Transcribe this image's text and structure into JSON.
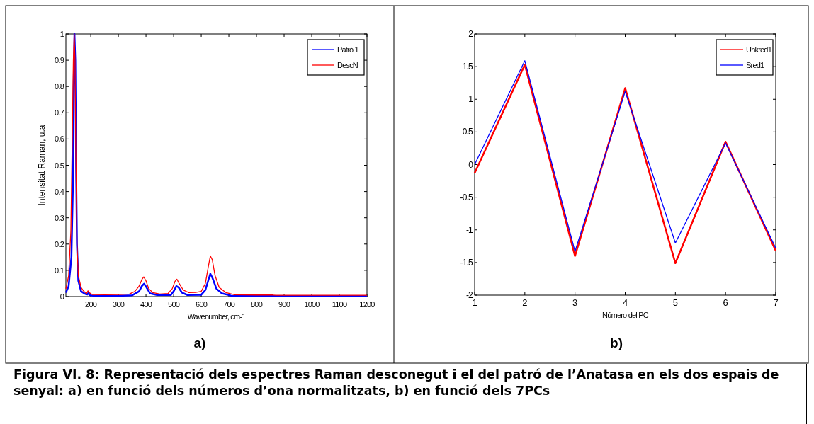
{
  "chart_data": [
    {
      "type": "line",
      "xlabel": "Wavenumber, cm-1",
      "ylabel": "Intensitat Raman, u.a",
      "annotations": [
        "a)"
      ],
      "xlim": [
        110,
        1200
      ],
      "ylim": [
        0,
        1
      ],
      "xticks": [
        200,
        300,
        400,
        500,
        600,
        700,
        800,
        900,
        1000,
        1100,
        1200
      ],
      "yticks": [
        0,
        0.1,
        0.2,
        0.3,
        0.4,
        0.5,
        0.6,
        0.7,
        0.8,
        0.9,
        1
      ],
      "legend": "top right",
      "series": [
        {
          "name": "Patró 1",
          "color": "#0000ff",
          "x": [
            110,
            120,
            130,
            135,
            138,
            141,
            144,
            147,
            150,
            155,
            165,
            180,
            188,
            192,
            197,
            210,
            300,
            350,
            375,
            385,
            393,
            402,
            415,
            440,
            490,
            500,
            510,
            518,
            530,
            550,
            600,
            615,
            625,
            633,
            641,
            655,
            675,
            700,
            710,
            870,
            1200
          ],
          "values": [
            0.015,
            0.04,
            0.15,
            0.4,
            0.8,
            1.0,
            0.9,
            0.5,
            0.2,
            0.06,
            0.02,
            0.01,
            0.008,
            0.015,
            0.005,
            0.003,
            0.003,
            0.005,
            0.02,
            0.04,
            0.049,
            0.035,
            0.012,
            0.006,
            0.006,
            0.02,
            0.04,
            0.035,
            0.015,
            0.006,
            0.007,
            0.025,
            0.06,
            0.087,
            0.07,
            0.03,
            0.012,
            0.006,
            0.002,
            0.002,
            0.002
          ]
        },
        {
          "name": "DescN",
          "color": "#ff0000",
          "x": [
            110,
            120,
            128,
            133,
            137,
            140,
            143,
            146,
            150,
            155,
            165,
            175,
            185,
            190,
            195,
            205,
            250,
            300,
            340,
            360,
            375,
            385,
            392,
            400,
            410,
            425,
            450,
            480,
            495,
            505,
            512,
            520,
            535,
            555,
            580,
            600,
            615,
            625,
            633,
            640,
            650,
            665,
            690,
            720,
            800,
            860,
            870,
            1200
          ],
          "values": [
            0.03,
            0.08,
            0.25,
            0.6,
            0.9,
            1.0,
            0.9,
            0.55,
            0.2,
            0.08,
            0.035,
            0.02,
            0.012,
            0.022,
            0.015,
            0.008,
            0.007,
            0.008,
            0.01,
            0.02,
            0.04,
            0.065,
            0.075,
            0.06,
            0.03,
            0.015,
            0.01,
            0.012,
            0.03,
            0.058,
            0.066,
            0.05,
            0.025,
            0.015,
            0.016,
            0.02,
            0.05,
            0.11,
            0.155,
            0.14,
            0.08,
            0.035,
            0.015,
            0.007,
            0.006,
            0.006,
            0.005,
            0.005
          ]
        }
      ]
    },
    {
      "type": "line",
      "xlabel": "Número del PC",
      "annotations": [
        "b)",
        "Figura VI. 8: Representació dels espectres Raman desconegut i el del patró de l’Anatasa en els dos espais de senyal: a) en funció dels números d’ona normalitzats, b) en funció dels 7PCs"
      ],
      "x": [
        1,
        2,
        3,
        4,
        5,
        6,
        7
      ],
      "xlim": [
        1,
        7
      ],
      "ylim": [
        -2,
        2
      ],
      "xticks": [
        1,
        2,
        3,
        4,
        5,
        6,
        7
      ],
      "yticks": [
        -2,
        -1.5,
        -1,
        -0.5,
        0,
        0.5,
        1,
        1.5,
        2
      ],
      "legend": "top right",
      "series": [
        {
          "name": "Unkred1",
          "color": "#ff0000",
          "values": [
            -0.13,
            1.53,
            -1.4,
            1.17,
            -1.51,
            0.35,
            -1.32
          ]
        },
        {
          "name": "Sred1",
          "color": "#0000ff",
          "values": [
            0.0,
            1.59,
            -1.33,
            1.12,
            -1.2,
            0.33,
            -1.28
          ]
        }
      ]
    }
  ]
}
